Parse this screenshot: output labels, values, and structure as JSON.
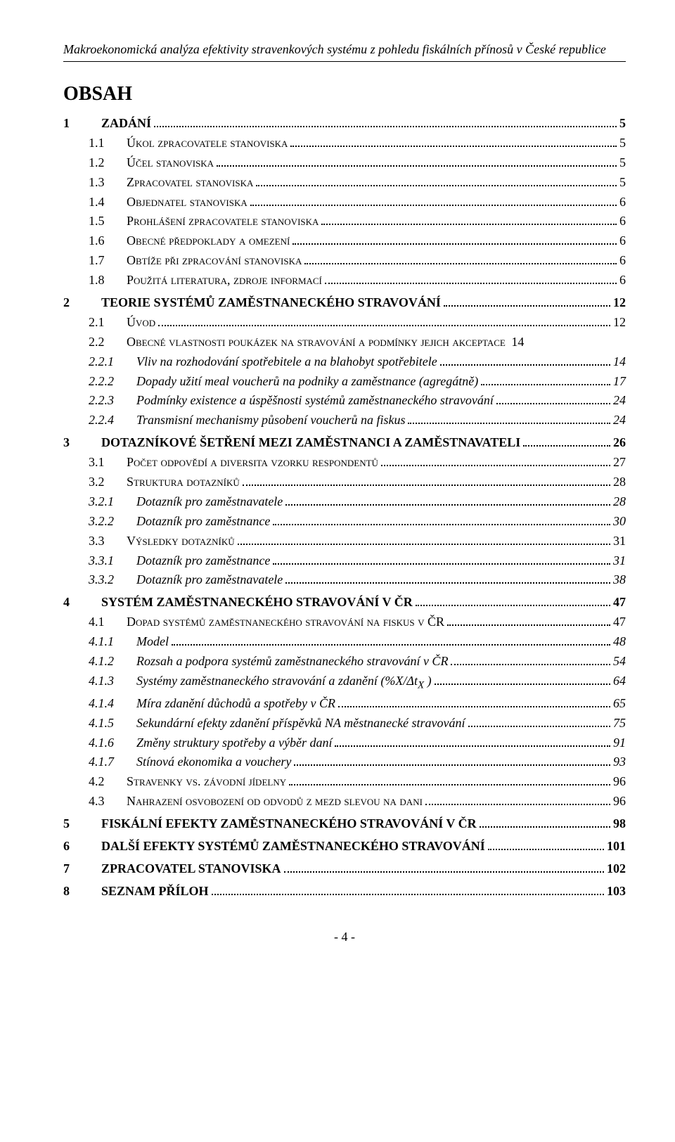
{
  "header": "Makroekonomická analýza efektivity stravenkových systému z pohledu fiskálních přínosů v České republice",
  "toc_title": "OBSAH",
  "page_number": "- 4 -",
  "entries": [
    {
      "level": 1,
      "num": "1",
      "label": "ZADÁNÍ",
      "page": "5"
    },
    {
      "level": 2,
      "num": "1.1",
      "labelA": "Ú",
      "labelB": "kol zpracovatele stanoviska",
      "page": "5"
    },
    {
      "level": 2,
      "num": "1.2",
      "labelA": "Ú",
      "labelB": "čel stanoviska",
      "page": "5"
    },
    {
      "level": 2,
      "num": "1.3",
      "labelA": "Z",
      "labelB": "pracovatel stanoviska",
      "page": "5"
    },
    {
      "level": 2,
      "num": "1.4",
      "labelA": "O",
      "labelB": "bjednatel stanoviska",
      "page": "6"
    },
    {
      "level": 2,
      "num": "1.5",
      "labelA": "P",
      "labelB": "rohlášení zpracovatele stanoviska",
      "page": "6"
    },
    {
      "level": 2,
      "num": "1.6",
      "labelA": "O",
      "labelB": "becné předpoklady a omezení",
      "page": "6"
    },
    {
      "level": 2,
      "num": "1.7",
      "labelA": "O",
      "labelB": "btíže při zpracování stanoviska",
      "page": "6"
    },
    {
      "level": 2,
      "num": "1.8",
      "labelA": "P",
      "labelB": "oužitá literatura, zdroje informací",
      "page": "6"
    },
    {
      "level": 1,
      "num": "2",
      "label": "TEORIE SYSTÉMŮ ZAMĚSTNANECKÉHO STRAVOVÁNÍ",
      "page": "12"
    },
    {
      "level": 2,
      "num": "2.1",
      "labelA": "Ú",
      "labelB": "vod",
      "page": "12"
    },
    {
      "level": 2,
      "num": "2.2",
      "labelA": "O",
      "labelB": "becné vlastnosti poukázek na stravování a podmínky jejich akceptace",
      "page": "14",
      "nodots": true
    },
    {
      "level": 3,
      "num": "2.2.1",
      "label": "Vliv na rozhodování spotřebitele a na blahobyt spotřebitele",
      "page": "14"
    },
    {
      "level": 3,
      "num": "2.2.2",
      "label": "Dopady užití meal voucherů na podniky a zaměstnance (agregátně)",
      "page": "17"
    },
    {
      "level": 3,
      "num": "2.2.3",
      "label": "Podmínky existence a úspěšnosti systémů zaměstnaneckého stravování",
      "page": "24"
    },
    {
      "level": 3,
      "num": "2.2.4",
      "label": "Transmisní mechanismy působení voucherů na fiskus",
      "page": "24"
    },
    {
      "level": 1,
      "num": "3",
      "label": "DOTAZNÍKOVÉ ŠETŘENÍ MEZI ZAMĚSTNANCI A ZAMĚSTNAVATELI",
      "page": "26"
    },
    {
      "level": 2,
      "num": "3.1",
      "labelA": "P",
      "labelB": "očet odpovědí a diversita vzorku respondentů",
      "page": "27"
    },
    {
      "level": 2,
      "num": "3.2",
      "labelA": "S",
      "labelB": "truktura dotazníků",
      "page": "28"
    },
    {
      "level": 3,
      "num": "3.2.1",
      "label": "Dotazník pro zaměstnavatele",
      "page": "28"
    },
    {
      "level": 3,
      "num": "3.2.2",
      "label": "Dotazník pro zaměstnance",
      "page": "30"
    },
    {
      "level": 2,
      "num": "3.3",
      "labelA": "V",
      "labelB": "ýsledky dotazníků",
      "page": "31"
    },
    {
      "level": 3,
      "num": "3.3.1",
      "label": "Dotazník pro zaměstnance",
      "page": "31"
    },
    {
      "level": 3,
      "num": "3.3.2",
      "label": "Dotazník pro zaměstnavatele",
      "page": "38"
    },
    {
      "level": 1,
      "num": "4",
      "label": "SYSTÉM ZAMĚSTNANECKÉHO STRAVOVÁNÍ V ČR",
      "page": "47"
    },
    {
      "level": 2,
      "num": "4.1",
      "labelA": "D",
      "labelB": "opad systémů zaměstnaneckého stravování na fiskus v ČR",
      "page": "47"
    },
    {
      "level": 3,
      "num": "4.1.1",
      "label": "Model",
      "page": "48"
    },
    {
      "level": 3,
      "num": "4.1.2",
      "label": "Rozsah a podpora systémů zaměstnaneckého stravování v ČR",
      "page": "54"
    },
    {
      "level": 3,
      "num": "4.1.3",
      "label": "Systémy zaměstnaneckého stravování a zdanění (%X/Δt",
      "labelSub": "X",
      "labelAfter": " )",
      "page": "64"
    },
    {
      "level": 3,
      "num": "4.1.4",
      "label": "Míra zdanění důchodů a spotřeby v ČR",
      "page": "65"
    },
    {
      "level": 3,
      "num": "4.1.5",
      "label": "Sekundární efekty zdanění příspěvků NA městnanecké stravování",
      "page": "75"
    },
    {
      "level": 3,
      "num": "4.1.6",
      "label": "Změny struktury spotřeby a výběr daní",
      "page": "91"
    },
    {
      "level": 3,
      "num": "4.1.7",
      "label": "Stínová ekonomika a vouchery",
      "page": "93"
    },
    {
      "level": 2,
      "num": "4.2",
      "labelA": "S",
      "labelB": "travenky vs. závodní jídelny",
      "page": "96"
    },
    {
      "level": 2,
      "num": "4.3",
      "labelA": "N",
      "labelB": "ahrazení osvobození od odvodů z mezd slevou na dani",
      "page": "96"
    },
    {
      "level": 1,
      "num": "5",
      "label": "FISKÁLNÍ EFEKTY ZAMĚSTNANECKÉHO STRAVOVÁNÍ V ČR",
      "page": "98"
    },
    {
      "level": 1,
      "num": "6",
      "label": "DALŠÍ EFEKTY SYSTÉMŮ ZAMĚSTNANECKÉHO STRAVOVÁNÍ",
      "page": "101"
    },
    {
      "level": 1,
      "num": "7",
      "label": "ZPRACOVATEL STANOVISKA",
      "page": "102"
    },
    {
      "level": 1,
      "num": "8",
      "label": "SEZNAM PŘÍLOH",
      "page": "103"
    }
  ]
}
